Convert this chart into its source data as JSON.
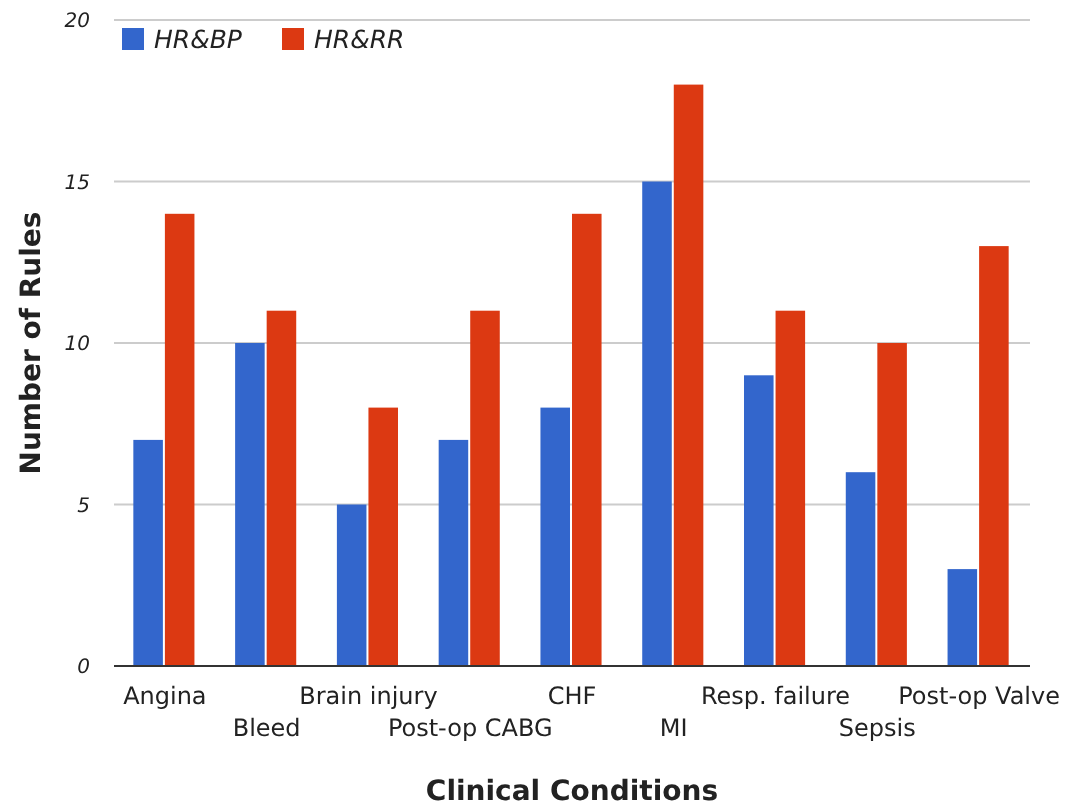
{
  "chart_data": {
    "type": "bar",
    "xlabel": "Clinical Conditions",
    "ylabel": "Number of Rules",
    "categories": [
      "Angina",
      "Bleed",
      "Brain injury",
      "Post-op CABG",
      "CHF",
      "MI",
      "Resp. failure",
      "Sepsis",
      "Post-op Valve"
    ],
    "series": [
      {
        "name": "HR&BP",
        "color": "#3366cc",
        "values": [
          7,
          10,
          5,
          7,
          8,
          15,
          9,
          6,
          3
        ]
      },
      {
        "name": "HR&RR",
        "color": "#dc3912",
        "values": [
          14,
          11,
          8,
          11,
          14,
          18,
          11,
          10,
          13
        ]
      }
    ],
    "ylim": [
      0,
      20
    ],
    "yticks": [
      0,
      5,
      10,
      15,
      20
    ],
    "grid": "y",
    "legend": "top left"
  }
}
